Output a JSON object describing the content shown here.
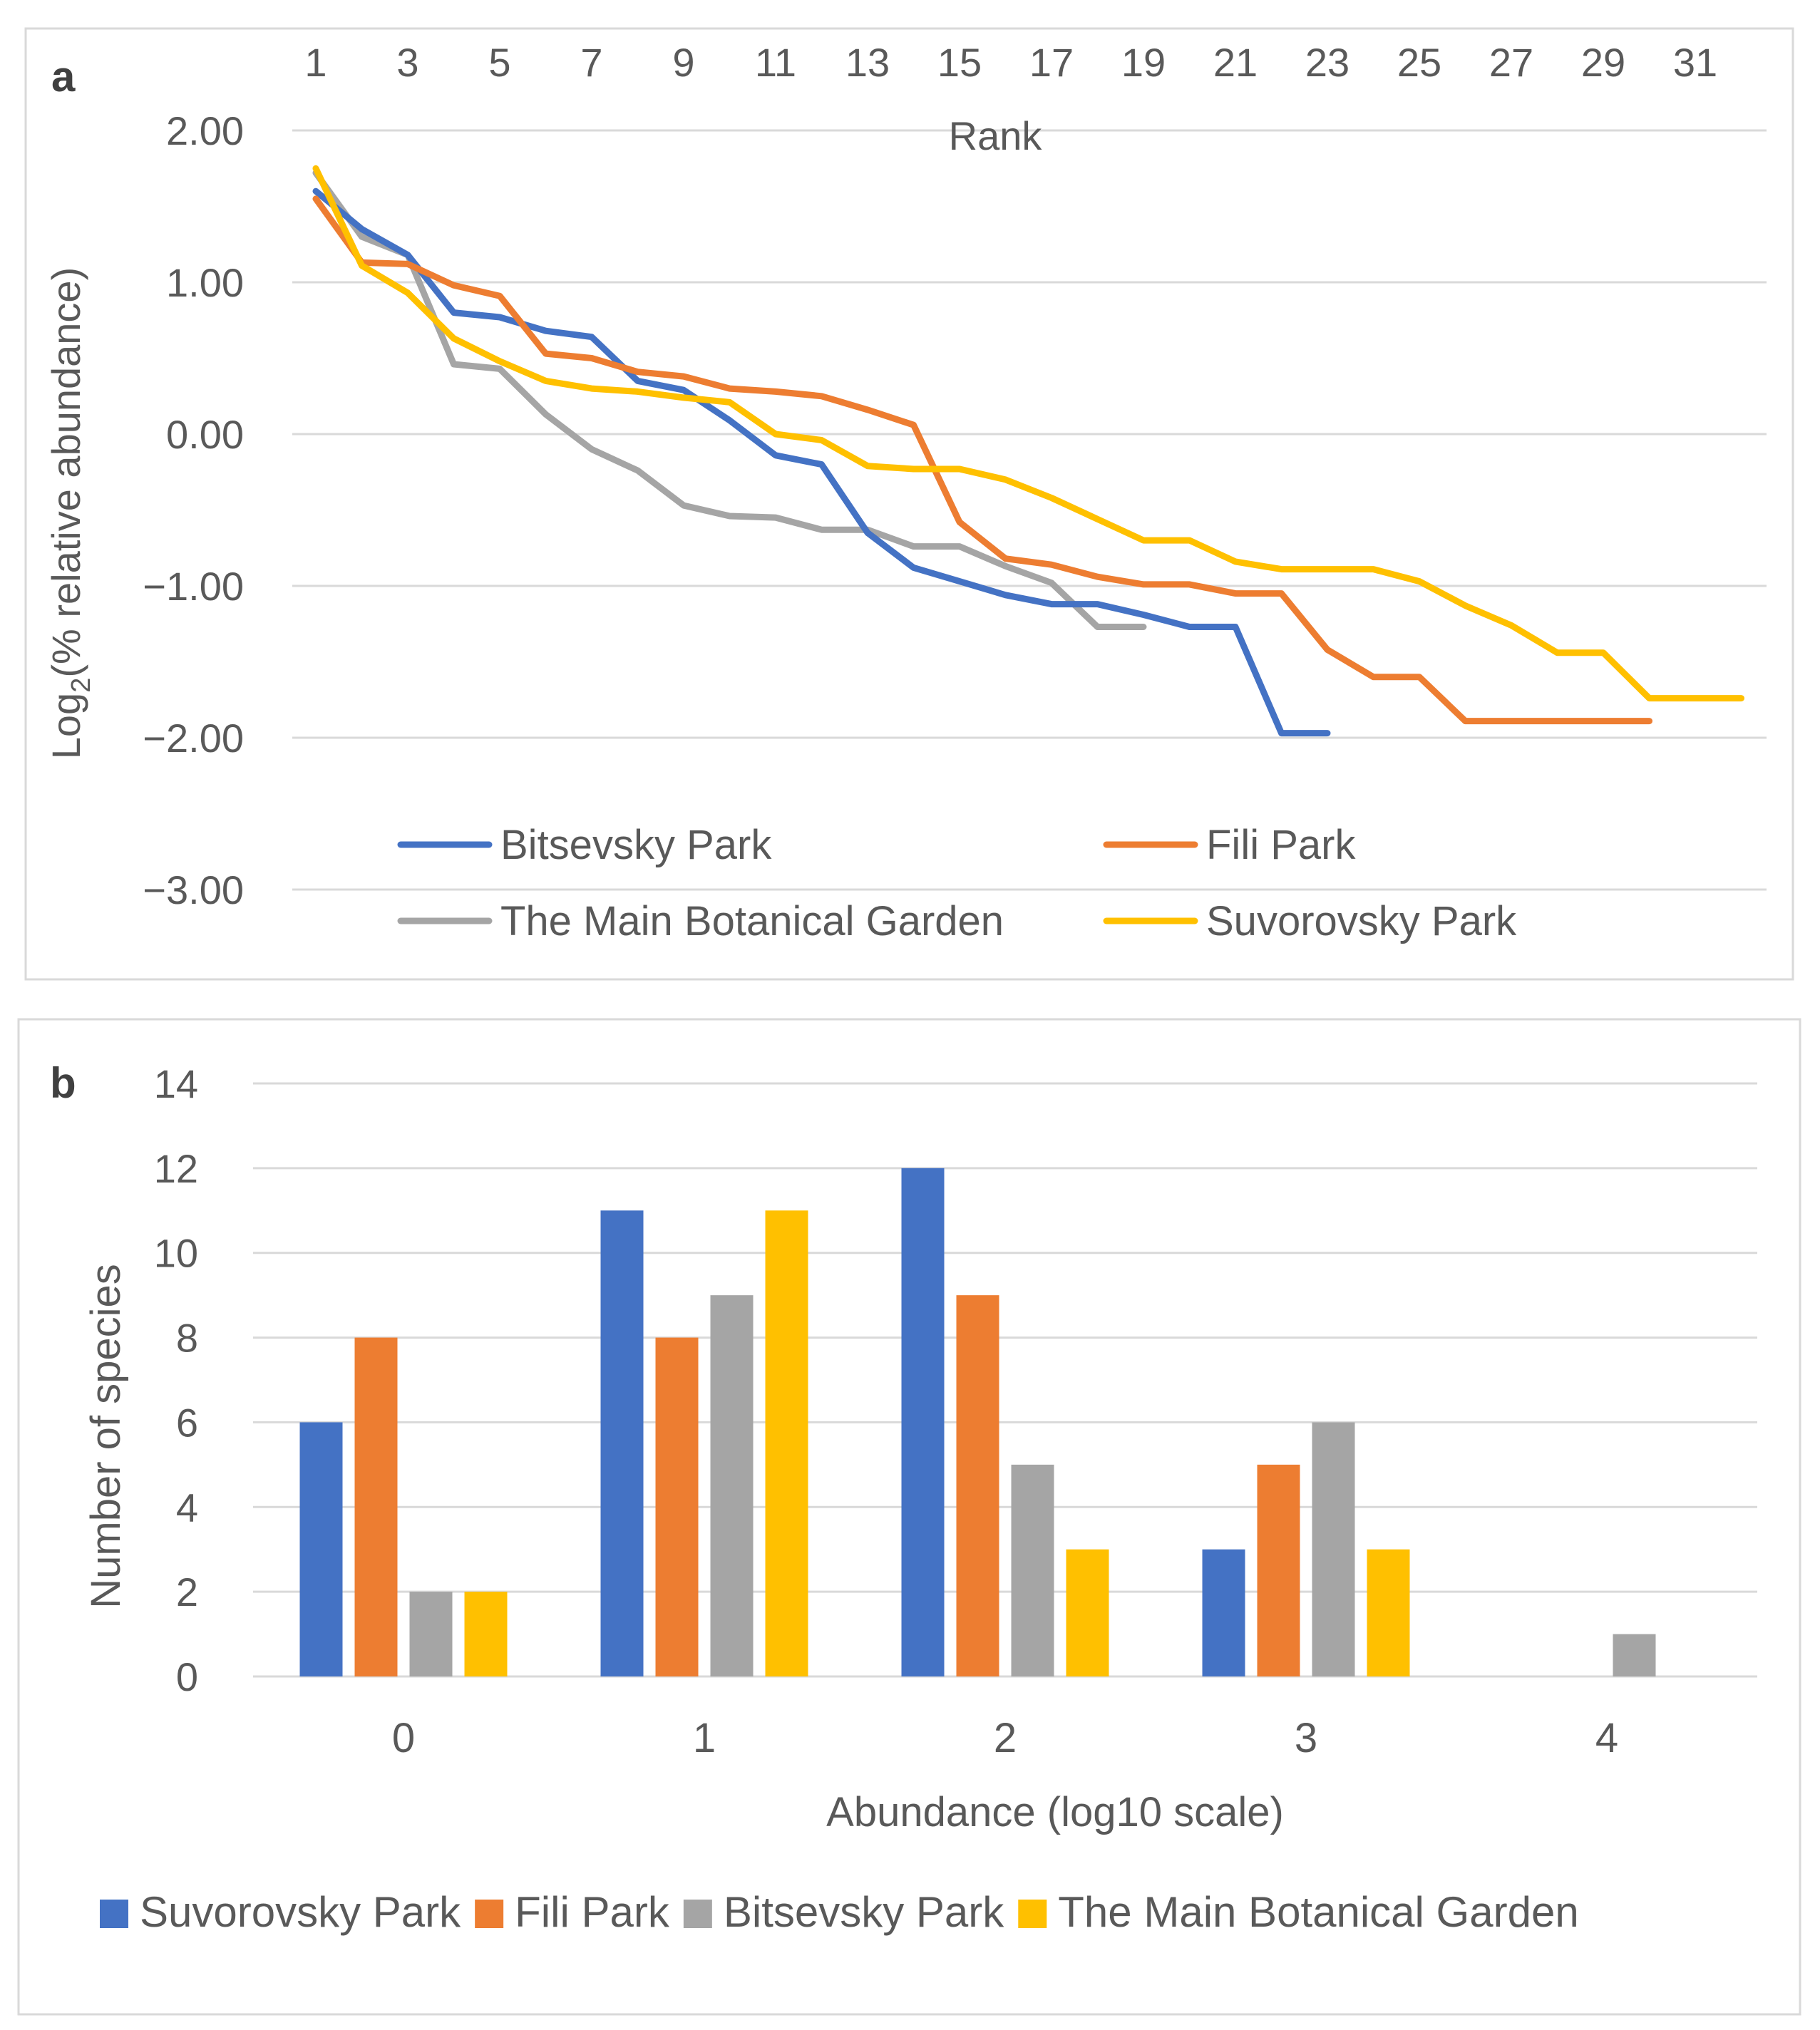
{
  "chart_data": [
    {
      "panel": "a",
      "type": "line",
      "xlabel": "Rank",
      "ylabel_prefix": "Log",
      "ylabel_sub": "2",
      "ylabel_rest": "(% relative abundance)",
      "ylim": [
        -3,
        2
      ],
      "xlim": [
        1,
        32
      ],
      "x_ticks": [
        "1",
        "3",
        "5",
        "7",
        "9",
        "11",
        "13",
        "15",
        "17",
        "19",
        "21",
        "23",
        "25",
        "27",
        "29",
        "31"
      ],
      "y_ticks": [
        "2.00",
        "1.00",
        "0.00",
        "−1.00",
        "−2.00",
        "−3.00"
      ],
      "series": [
        {
          "name": "Bitsevsky Park",
          "color": "#4472c4",
          "values": [
            1.6,
            1.35,
            1.18,
            0.8,
            0.77,
            0.68,
            0.64,
            0.35,
            0.29,
            0.09,
            -0.14,
            -0.2,
            -0.65,
            -0.88,
            -0.97,
            -1.06,
            -1.12,
            -1.12,
            -1.19,
            -1.27,
            -1.27,
            -1.97,
            -1.97
          ]
        },
        {
          "name": "Fili Park",
          "color": "#ed7d31",
          "values": [
            1.55,
            1.13,
            1.12,
            0.98,
            0.91,
            0.53,
            0.5,
            0.41,
            0.38,
            0.3,
            0.28,
            0.25,
            0.16,
            0.06,
            -0.58,
            -0.82,
            -0.86,
            -0.94,
            -0.99,
            -0.99,
            -1.05,
            -1.05,
            -1.42,
            -1.6,
            -1.6,
            -1.89,
            -1.89,
            -1.89,
            -1.89,
            -1.89
          ]
        },
        {
          "name": "The Main Botanical Garden",
          "color": "#a5a5a5",
          "values": [
            1.72,
            1.3,
            1.18,
            0.46,
            0.43,
            0.13,
            -0.1,
            -0.24,
            -0.47,
            -0.54,
            -0.55,
            -0.63,
            -0.63,
            -0.74,
            -0.74,
            -0.87,
            -0.98,
            -1.27,
            -1.27
          ]
        },
        {
          "name": "Suvorovsky Park",
          "color": "#ffc000",
          "values": [
            1.75,
            1.11,
            0.93,
            0.63,
            0.48,
            0.35,
            0.3,
            0.28,
            0.24,
            0.21,
            0.0,
            -0.04,
            -0.21,
            -0.23,
            -0.23,
            -0.3,
            -0.42,
            -0.56,
            -0.7,
            -0.7,
            -0.84,
            -0.89,
            -0.89,
            -0.89,
            -0.97,
            -1.13,
            -1.26,
            -1.44,
            -1.44,
            -1.74,
            -1.74,
            -1.74
          ]
        }
      ],
      "legend": [
        "Bitsevsky Park",
        "Fili Park",
        "The Main Botanical Garden",
        "Suvorovsky Park"
      ]
    },
    {
      "panel": "b",
      "type": "bar",
      "xlabel": "Abundance (log10 scale)",
      "ylabel": "Number of species",
      "ylim": [
        0,
        14
      ],
      "categories": [
        "0",
        "1",
        "2",
        "3",
        "4"
      ],
      "y_ticks": [
        "0",
        "2",
        "4",
        "6",
        "8",
        "10",
        "12",
        "14"
      ],
      "series": [
        {
          "name": "Suvorovsky Park",
          "color": "#4472c4",
          "values": [
            6,
            11,
            12,
            3,
            0
          ]
        },
        {
          "name": "Fili Park",
          "color": "#ed7d31",
          "values": [
            8,
            8,
            9,
            5,
            0
          ]
        },
        {
          "name": "Bitsevsky Park",
          "color": "#a5a5a5",
          "values": [
            2,
            9,
            5,
            6,
            1
          ]
        },
        {
          "name": "The Main Botanical Garden",
          "color": "#ffc000",
          "values": [
            2,
            11,
            3,
            3,
            0
          ]
        }
      ]
    }
  ]
}
